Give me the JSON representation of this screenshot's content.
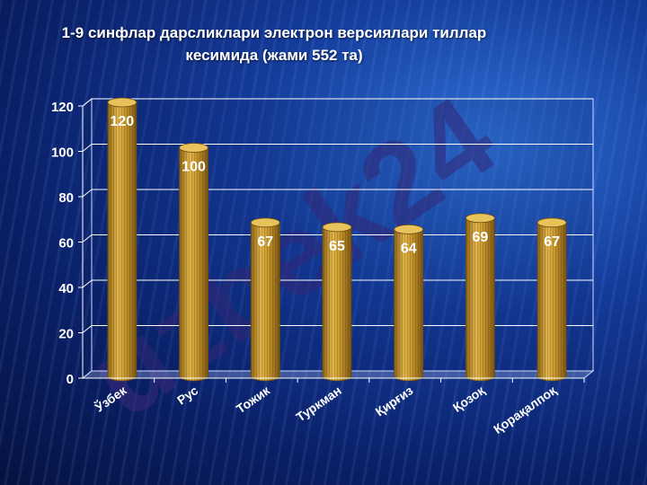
{
  "title": {
    "line1": "1-9 синфлар дарсликлари электрон версиялари тиллар",
    "line2": "кесимида (жами 552 та)"
  },
  "watermark": {
    "text": "uzbek24"
  },
  "colors": {
    "bar": "#d4a53a",
    "bar_dark": "#8a6416",
    "label": "#ffffff",
    "grid": "#ffffff"
  },
  "chart_data": {
    "type": "bar",
    "title": "1-9 синфлар дарсликлари электрон версиялари тиллар кесимида (жами 552 та)",
    "categories": [
      "Ўзбек",
      "Рус",
      "Тожик",
      "Туркман",
      "Қирғиз",
      "Қозоқ",
      "Қорақалпоқ"
    ],
    "values": [
      120,
      100,
      67,
      65,
      64,
      69,
      67
    ],
    "value_labels": [
      "120",
      "100",
      "67",
      "65",
      "64",
      "69",
      "67"
    ],
    "ylim": [
      0,
      120
    ],
    "yticks": [
      0,
      20,
      40,
      60,
      80,
      100,
      120
    ],
    "ytick_labels": [
      "0",
      "20",
      "40",
      "60",
      "80",
      "100",
      "120"
    ],
    "xlabel": "",
    "ylabel": "",
    "grid": true,
    "legend": "none"
  }
}
